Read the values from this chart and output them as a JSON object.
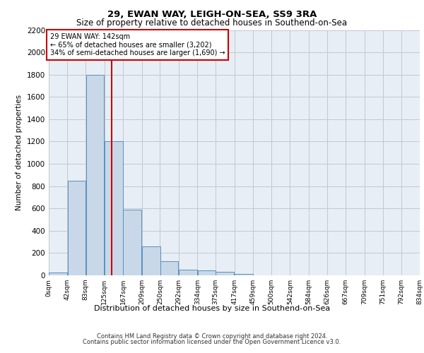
{
  "title1": "29, EWAN WAY, LEIGH-ON-SEA, SS9 3RA",
  "title2": "Size of property relative to detached houses in Southend-on-Sea",
  "xlabel": "Distribution of detached houses by size in Southend-on-Sea",
  "ylabel": "Number of detached properties",
  "bar_values": [
    25,
    850,
    1800,
    1200,
    590,
    260,
    125,
    50,
    45,
    30,
    15,
    0,
    0,
    0,
    0,
    0,
    0,
    0,
    0,
    0
  ],
  "bar_left_edges": [
    0,
    42,
    83,
    125,
    167,
    209,
    250,
    292,
    334,
    375,
    417,
    459,
    500,
    542,
    584,
    626,
    667,
    709,
    751,
    792
  ],
  "bar_width": 41.5,
  "tick_labels": [
    "0sqm",
    "42sqm",
    "83sqm",
    "125sqm",
    "167sqm",
    "209sqm",
    "250sqm",
    "292sqm",
    "334sqm",
    "375sqm",
    "417sqm",
    "459sqm",
    "500sqm",
    "542sqm",
    "584sqm",
    "626sqm",
    "667sqm",
    "709sqm",
    "751sqm",
    "792sqm",
    "834sqm"
  ],
  "bar_color": "#c8d8e8",
  "bar_edge_color": "#5a8fc0",
  "grid_color": "#c0c8d0",
  "background_color": "#e8eef5",
  "annotation_text": "29 EWAN WAY: 142sqm\n← 65% of detached houses are smaller (3,202)\n34% of semi-detached houses are larger (1,690) →",
  "vline_x": 142,
  "vline_color": "#cc0000",
  "annot_box_color": "#ffffff",
  "annot_border_color": "#cc0000",
  "ylim": [
    0,
    2200
  ],
  "yticks": [
    0,
    200,
    400,
    600,
    800,
    1000,
    1200,
    1400,
    1600,
    1800,
    2000,
    2200
  ],
  "footer1": "Contains HM Land Registry data © Crown copyright and database right 2024.",
  "footer2": "Contains public sector information licensed under the Open Government Licence v3.0."
}
